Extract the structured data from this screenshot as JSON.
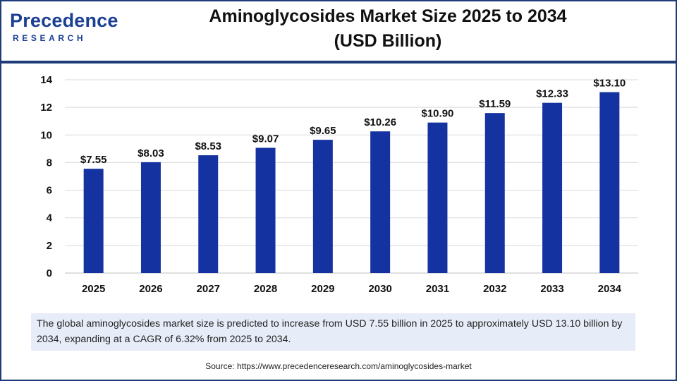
{
  "header": {
    "logo_main": "Precedence",
    "logo_sub": "RESEARCH",
    "title_line1": "Aminoglycosides Market Size 2025 to 2034",
    "title_line2": "(USD Billion)"
  },
  "chart_data": {
    "type": "bar",
    "categories": [
      "2025",
      "2026",
      "2027",
      "2028",
      "2029",
      "2030",
      "2031",
      "2032",
      "2033",
      "2034"
    ],
    "values": [
      7.55,
      8.03,
      8.53,
      9.07,
      9.65,
      10.26,
      10.9,
      11.59,
      12.33,
      13.1
    ],
    "data_labels": [
      "$7.55",
      "$8.03",
      "$8.53",
      "$9.07",
      "$9.65",
      "$10.26",
      "$10.90",
      "$11.59",
      "$12.33",
      "$13.10"
    ],
    "title": "Aminoglycosides Market Size 2025 to 2034 (USD Billion)",
    "xlabel": "",
    "ylabel": "",
    "ylim": [
      0,
      14
    ],
    "yticks": [
      0,
      2,
      4,
      6,
      8,
      10,
      12,
      14
    ],
    "grid": true,
    "bar_color": "#1432a0",
    "grid_color": "#d9d9d9"
  },
  "footer": {
    "note": "The global aminoglycosides market  size is predicted to increase from USD 7.55 billion in 2025 to approximately USD 13.10 billion by 2034, expanding at a CAGR of 6.32% from 2025 to 2034.",
    "source": "Source: https://www.precedenceresearch.com/aminoglycosides-market"
  }
}
